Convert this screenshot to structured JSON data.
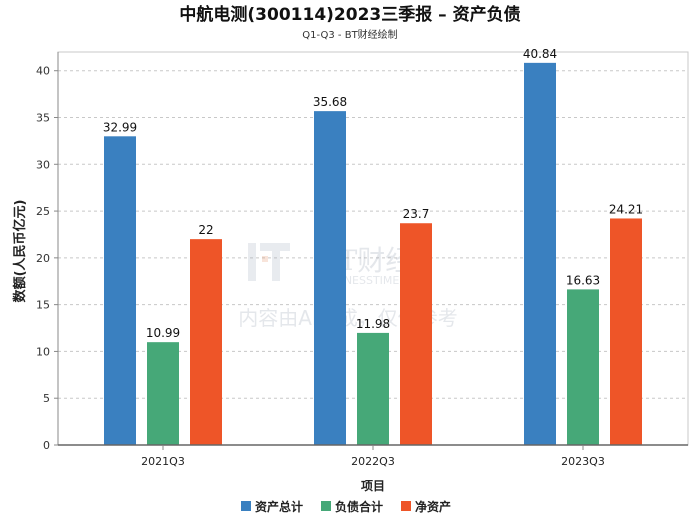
{
  "chart_data": {
    "type": "bar",
    "title": "中航电测(300114)2023三季报 – 资产负债",
    "subtitle": "Q1-Q3 - BT财经绘制",
    "xlabel": "项目",
    "ylabel": "数额(人民币亿元)",
    "categories": [
      "2021Q3",
      "2022Q3",
      "2023Q3"
    ],
    "ylim": [
      0,
      42
    ],
    "yticks": [
      0,
      5,
      10,
      15,
      20,
      25,
      30,
      35,
      40
    ],
    "grid": true,
    "legend_position": "bottom",
    "series": [
      {
        "name": "资产总计",
        "color": "#3a80c0",
        "values": [
          32.99,
          35.68,
          40.84
        ],
        "labels": [
          "32.99",
          "35.68",
          "40.84"
        ]
      },
      {
        "name": "负债合计",
        "color": "#46a878",
        "values": [
          10.99,
          11.98,
          16.63
        ],
        "labels": [
          "10.99",
          "11.98",
          "16.63"
        ]
      },
      {
        "name": "净资产",
        "color": "#ee5528",
        "values": [
          22,
          23.7,
          24.21
        ],
        "labels": [
          "22",
          "23.7",
          "24.21"
        ]
      }
    ]
  },
  "watermark": {
    "logo_text": "BT财经",
    "logo_subtext": "BUSINESSTIMES",
    "note": "内容由AI生成，仅供参考"
  }
}
